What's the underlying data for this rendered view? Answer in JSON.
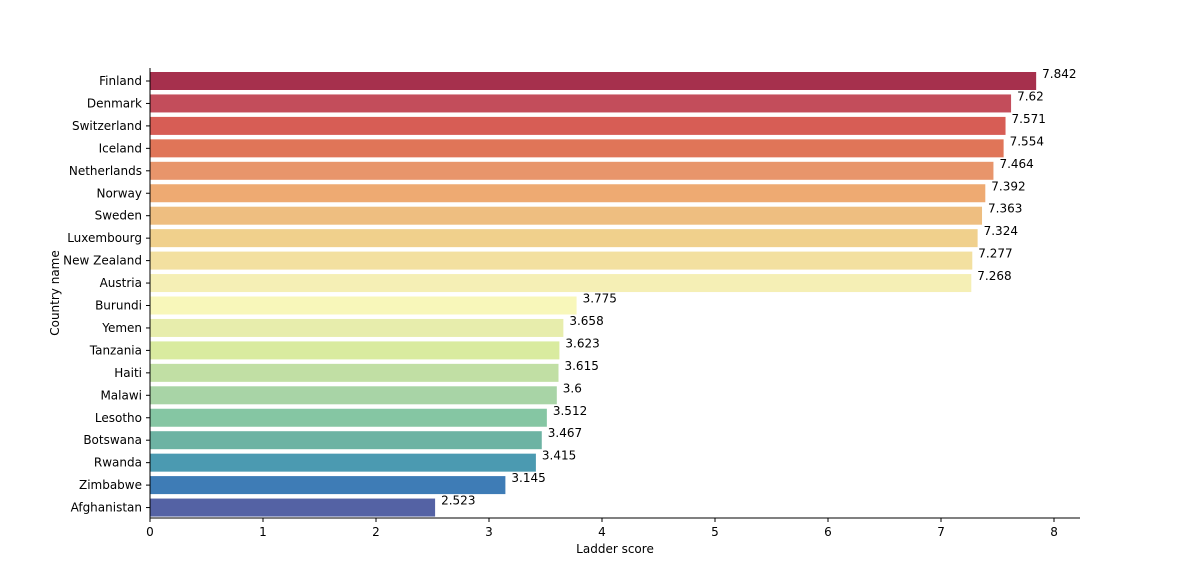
{
  "chart_data": {
    "type": "bar",
    "orientation": "horizontal",
    "xlabel": "Ladder score",
    "ylabel": "Country name",
    "xlim": [
      0,
      8.23
    ],
    "xticks": [
      0,
      1,
      2,
      3,
      4,
      5,
      6,
      7,
      8
    ],
    "grid": false,
    "legend": "none",
    "palette": "Spectral",
    "categories": [
      "Finland",
      "Denmark",
      "Switzerland",
      "Iceland",
      "Netherlands",
      "Norway",
      "Sweden",
      "Luxembourg",
      "New Zealand",
      "Austria",
      "Burundi",
      "Yemen",
      "Tanzania",
      "Haiti",
      "Malawi",
      "Lesotho",
      "Botswana",
      "Rwanda",
      "Zimbabwe",
      "Afghanistan"
    ],
    "values": [
      7.842,
      7.62,
      7.571,
      7.554,
      7.464,
      7.392,
      7.363,
      7.324,
      7.277,
      7.268,
      3.775,
      3.658,
      3.623,
      3.615,
      3.6,
      3.512,
      3.467,
      3.415,
      3.145,
      2.523
    ],
    "value_labels": [
      "7.842",
      "7.62",
      "7.571",
      "7.554",
      "7.464",
      "7.392",
      "7.363",
      "7.324",
      "7.277",
      "7.268",
      "3.775",
      "3.658",
      "3.623",
      "3.615",
      "3.6",
      "3.512",
      "3.467",
      "3.415",
      "3.145",
      "2.523"
    ],
    "colors": [
      "#a6304d",
      "#c34d5b",
      "#d75d55",
      "#e07558",
      "#e8956b",
      "#eeaa72",
      "#eebe80",
      "#f0d08c",
      "#f3e0a0",
      "#f5efb5",
      "#f8f7ba",
      "#e7edac",
      "#d9eb9f",
      "#c1dfa4",
      "#a8d4a6",
      "#85c6a3",
      "#6db3a3",
      "#4b9ab1",
      "#3e7cb6",
      "#5462a4"
    ]
  }
}
